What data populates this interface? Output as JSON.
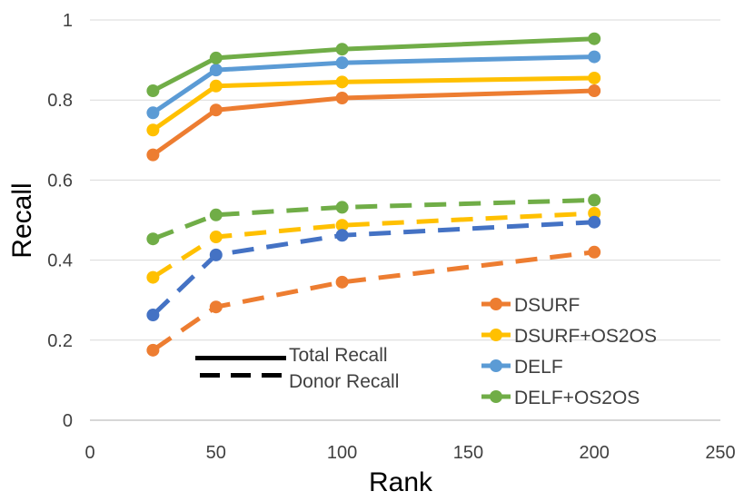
{
  "chart_data": {
    "type": "line",
    "title": "",
    "xlabel": "Rank",
    "ylabel": "Recall",
    "xlim": [
      0,
      250
    ],
    "ylim": [
      0,
      1
    ],
    "x_ticks": [
      "0",
      "50",
      "100",
      "150",
      "200",
      "250"
    ],
    "y_ticks": [
      "0",
      "0.2",
      "0.4",
      "0.6",
      "0.8",
      "1"
    ],
    "x_tick_values": [
      0,
      50,
      100,
      150,
      200,
      250
    ],
    "y_tick_values": [
      0,
      0.2,
      0.4,
      0.6,
      0.8,
      1
    ],
    "grid": "horizontal",
    "legend_position": "bottom-right",
    "x": [
      25,
      50,
      100,
      200
    ],
    "series": [
      {
        "name": "DSURF",
        "kind": "Total Recall",
        "style": "solid",
        "color": "#ed7d31",
        "values": [
          0.663,
          0.775,
          0.805,
          0.823
        ],
        "show_in_legend": true
      },
      {
        "name": "DSURF+OS2OS",
        "kind": "Total Recall",
        "style": "solid",
        "color": "#ffc000",
        "values": [
          0.725,
          0.835,
          0.845,
          0.855
        ],
        "show_in_legend": true
      },
      {
        "name": "DELF",
        "kind": "Total Recall",
        "style": "solid",
        "color": "#5b9bd5",
        "values": [
          0.768,
          0.875,
          0.893,
          0.908
        ],
        "show_in_legend": true
      },
      {
        "name": "DELF+OS2OS",
        "kind": "Total Recall",
        "style": "solid",
        "color": "#70ad47",
        "values": [
          0.823,
          0.905,
          0.927,
          0.953
        ],
        "show_in_legend": true
      },
      {
        "name": "DSURF",
        "kind": "Donor Recall",
        "style": "dashed",
        "color": "#ed7d31",
        "values": [
          0.175,
          0.283,
          0.345,
          0.42
        ],
        "show_in_legend": false
      },
      {
        "name": "DSURF+OS2OS",
        "kind": "Donor Recall",
        "style": "dashed",
        "color": "#ffc000",
        "values": [
          0.357,
          0.458,
          0.487,
          0.517
        ],
        "show_in_legend": false
      },
      {
        "name": "DELF",
        "kind": "Donor Recall",
        "style": "dashed",
        "color": "#4472c4",
        "values": [
          0.263,
          0.413,
          0.462,
          0.495
        ],
        "show_in_legend": false
      },
      {
        "name": "DELF+OS2OS",
        "kind": "Donor Recall",
        "style": "dashed",
        "color": "#70ad47",
        "values": [
          0.453,
          0.513,
          0.532,
          0.55
        ],
        "show_in_legend": false
      }
    ],
    "style_legend": [
      {
        "label": "Total Recall",
        "style": "solid"
      },
      {
        "label": "Donor Recall",
        "style": "dashed"
      }
    ]
  }
}
